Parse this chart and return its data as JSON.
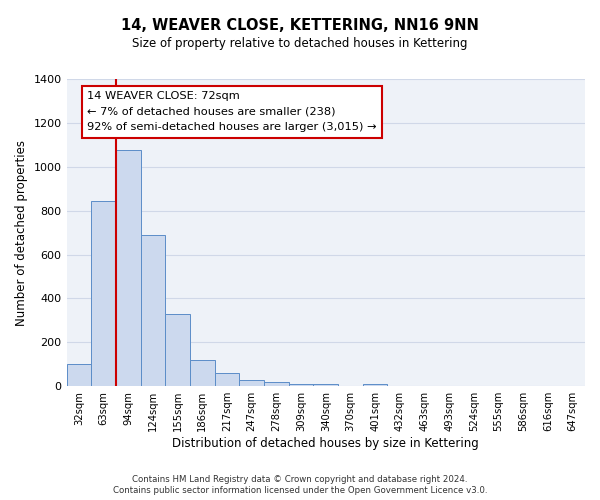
{
  "title": "14, WEAVER CLOSE, KETTERING, NN16 9NN",
  "subtitle": "Size of property relative to detached houses in Kettering",
  "xlabel": "Distribution of detached houses by size in Kettering",
  "ylabel": "Number of detached properties",
  "bar_labels": [
    "32sqm",
    "63sqm",
    "94sqm",
    "124sqm",
    "155sqm",
    "186sqm",
    "217sqm",
    "247sqm",
    "278sqm",
    "309sqm",
    "340sqm",
    "370sqm",
    "401sqm",
    "432sqm",
    "463sqm",
    "493sqm",
    "524sqm",
    "555sqm",
    "586sqm",
    "616sqm",
    "647sqm"
  ],
  "bar_values": [
    100,
    845,
    1075,
    690,
    328,
    120,
    62,
    30,
    18,
    12,
    8,
    0,
    10,
    0,
    0,
    0,
    0,
    0,
    0,
    0,
    0
  ],
  "bar_color": "#ccd9ee",
  "bar_edge_color": "#5b8dc8",
  "ylim": [
    0,
    1400
  ],
  "yticks": [
    0,
    200,
    400,
    600,
    800,
    1000,
    1200,
    1400
  ],
  "vline_x": 1.5,
  "vline_color": "#cc0000",
  "annotation_text": "14 WEAVER CLOSE: 72sqm\n← 7% of detached houses are smaller (238)\n92% of semi-detached houses are larger (3,015) →",
  "annotation_box_color": "#ffffff",
  "annotation_box_edge": "#cc0000",
  "grid_color": "#d0d8e8",
  "background_color": "#eef2f8",
  "footer_line1": "Contains HM Land Registry data © Crown copyright and database right 2024.",
  "footer_line2": "Contains public sector information licensed under the Open Government Licence v3.0."
}
